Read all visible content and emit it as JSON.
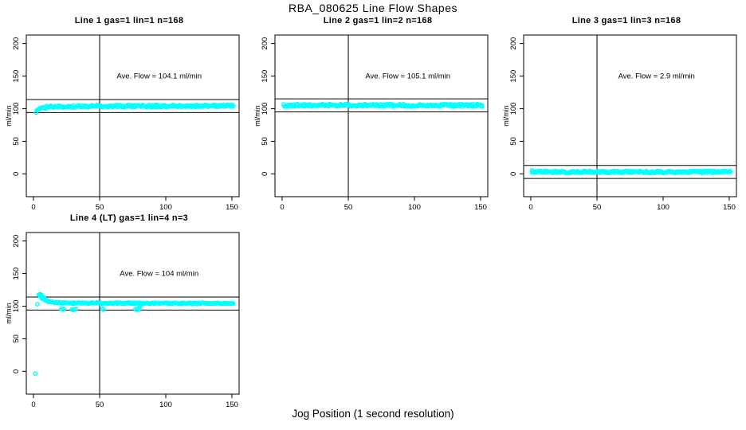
{
  "header": {
    "title": "RBA_080625  Line Flow Shapes"
  },
  "xlabel": "Jog Position (1 second resolution)",
  "colors": {
    "points": "#00ffff",
    "axis": "#000000",
    "background": "#ffffff",
    "text": "#000000"
  },
  "chart_data": [
    {
      "type": "scatter",
      "title": "Line 1 gas=1 lin=1 n=168",
      "annotation": "Ave. Flow =  104.1  ml/min",
      "ave_flow": 104.1,
      "ylabel": "ml/min",
      "xticks": [
        0,
        50,
        100,
        150
      ],
      "yticks": [
        0,
        50,
        100,
        150,
        200
      ],
      "xlim": [
        -5.4,
        155.4
      ],
      "ylim": [
        -35,
        213
      ],
      "vline_x": 50,
      "hlines": [
        114.1,
        94.1
      ],
      "band": {
        "halfwidth": 1.8,
        "centerline": [
          [
            2,
            95.5
          ],
          [
            3,
            97.5
          ],
          [
            4,
            99
          ],
          [
            5,
            100
          ],
          [
            6,
            100.8
          ],
          [
            8,
            101.8
          ],
          [
            10,
            102.3
          ],
          [
            13,
            102.8
          ],
          [
            17,
            103.1
          ],
          [
            25,
            103.4
          ],
          [
            40,
            103.7
          ],
          [
            60,
            103.9
          ],
          [
            90,
            104.1
          ],
          [
            120,
            104.3
          ],
          [
            151,
            104.4
          ]
        ]
      },
      "extra_points": []
    },
    {
      "type": "scatter",
      "title": "Line 2 gas=1 lin=2 n=168",
      "annotation": "Ave. Flow =  105.1  ml/min",
      "ave_flow": 105.1,
      "ylabel": "ml/min",
      "xticks": [
        0,
        50,
        100,
        150
      ],
      "yticks": [
        0,
        50,
        100,
        150,
        200
      ],
      "xlim": [
        -5.4,
        155.4
      ],
      "ylim": [
        -35,
        213
      ],
      "vline_x": 50,
      "hlines": [
        115.1,
        95.1
      ],
      "band": {
        "halfwidth": 2.0,
        "centerline": [
          [
            1,
            104.8
          ],
          [
            15,
            105.1
          ],
          [
            40,
            105.3
          ],
          [
            70,
            105.1
          ],
          [
            100,
            105.2
          ],
          [
            130,
            105.0
          ],
          [
            151,
            105.1
          ]
        ]
      },
      "extra_points": []
    },
    {
      "type": "scatter",
      "title": "Line 3 gas=1 lin=3 n=168",
      "annotation": "Ave. Flow =  2.9  ml/min",
      "ave_flow": 2.9,
      "ylabel": "ml/min",
      "xticks": [
        0,
        50,
        100,
        150
      ],
      "yticks": [
        0,
        50,
        100,
        150,
        200
      ],
      "xlim": [
        -5.4,
        155.4
      ],
      "ylim": [
        -35,
        213
      ],
      "vline_x": 50,
      "hlines": [
        12.9,
        -7.1
      ],
      "band": {
        "halfwidth": 1.6,
        "centerline": [
          [
            1,
            3.8
          ],
          [
            5,
            3.2
          ],
          [
            20,
            3.0
          ],
          [
            60,
            3.0
          ],
          [
            100,
            3.0
          ],
          [
            151,
            3.0
          ]
        ]
      },
      "extra_points": [
        [
          1,
          5
        ],
        [
          1,
          2.5
        ]
      ]
    },
    {
      "type": "scatter",
      "title": "Line 4 (LT) gas=1 lin=4 n=3",
      "annotation": "Ave. Flow =  104  ml/min",
      "ave_flow": 104,
      "ylabel": "ml/min",
      "xticks": [
        0,
        50,
        100,
        150
      ],
      "yticks": [
        0,
        50,
        100,
        150,
        200
      ],
      "xlim": [
        -5.4,
        155.4
      ],
      "ylim": [
        -35,
        213
      ],
      "vline_x": 50,
      "hlines": [
        114,
        94
      ],
      "band": {
        "halfwidth": 1.0,
        "centerline": [
          [
            4,
            117.5
          ],
          [
            5,
            116.5
          ],
          [
            6,
            115
          ],
          [
            7,
            113
          ],
          [
            8,
            111
          ],
          [
            9,
            109.5
          ],
          [
            10,
            108.5
          ],
          [
            12,
            107
          ],
          [
            14,
            106
          ],
          [
            17,
            105.5
          ],
          [
            20,
            105.2
          ],
          [
            25,
            105
          ],
          [
            40,
            104.8
          ],
          [
            60,
            104.6
          ],
          [
            80,
            104.5
          ],
          [
            110,
            104.3
          ],
          [
            151,
            104.2
          ]
        ]
      },
      "extra_points": [
        [
          1.5,
          -3.5
        ],
        [
          3,
          103
        ],
        [
          5,
          118.5
        ],
        [
          6,
          117
        ],
        [
          6,
          112.5
        ],
        [
          7,
          111
        ],
        [
          8,
          113.5
        ],
        [
          21,
          96
        ],
        [
          22,
          95
        ],
        [
          23,
          95.5
        ],
        [
          29,
          95
        ],
        [
          30,
          94.3
        ],
        [
          31,
          94.8
        ],
        [
          32,
          95.5
        ],
        [
          52,
          96
        ],
        [
          53,
          95
        ],
        [
          77,
          95.5
        ],
        [
          78,
          94.5
        ],
        [
          79,
          95.2
        ],
        [
          80,
          96.5
        ],
        [
          80,
          99
        ],
        [
          81,
          101.5
        ]
      ]
    }
  ]
}
